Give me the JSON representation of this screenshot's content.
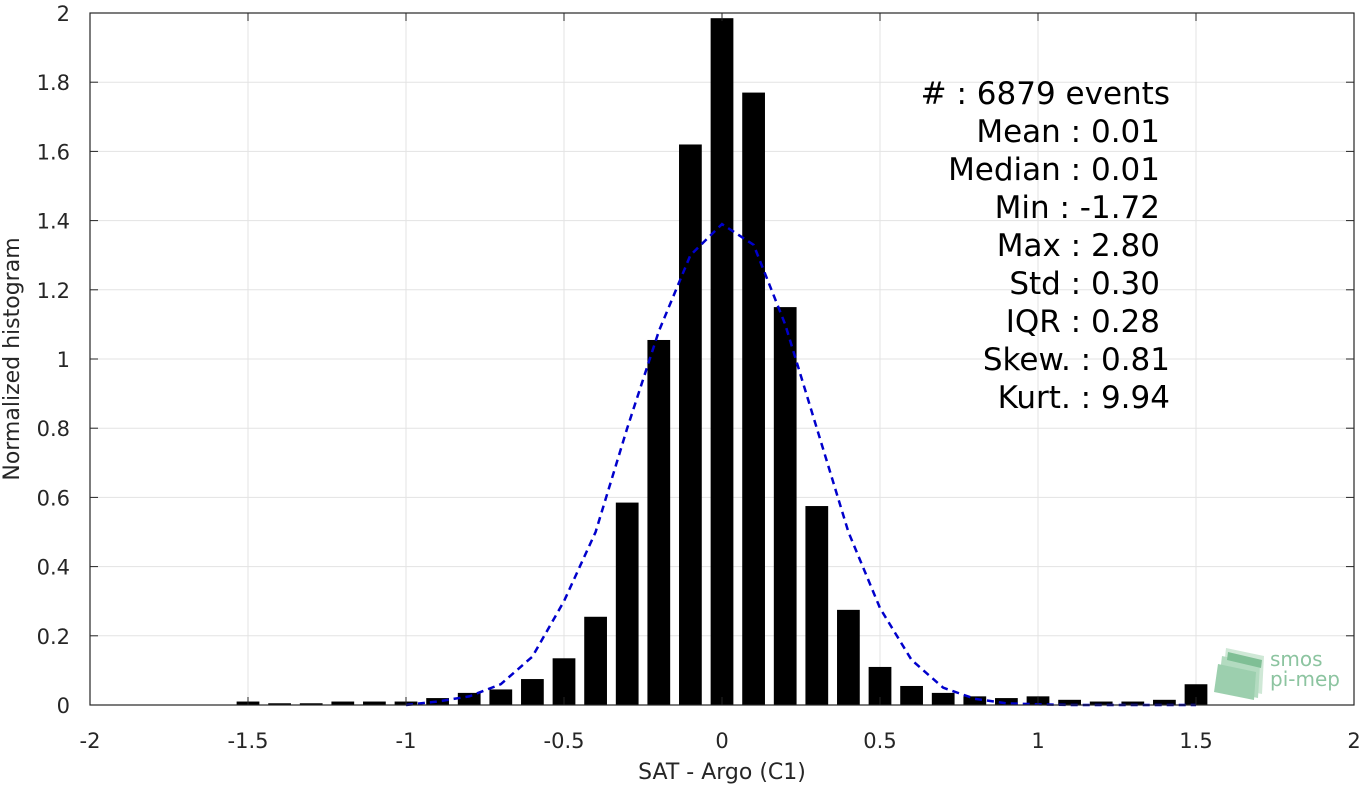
{
  "chart_data": {
    "type": "bar",
    "xlabel": "SAT - Argo (C1)",
    "ylabel": "Normalized histogram",
    "xlim": [
      -2,
      2
    ],
    "ylim": [
      0,
      2
    ],
    "xticks": [
      -2,
      -1.5,
      -1,
      -0.5,
      0,
      0.5,
      1,
      1.5,
      2
    ],
    "xtick_labels": [
      "-2",
      "-1.5",
      "-1",
      "-0.5",
      "0",
      "0.5",
      "1",
      "1.5",
      "2"
    ],
    "yticks": [
      0,
      0.2,
      0.4,
      0.6,
      0.8,
      1,
      1.2,
      1.4,
      1.6,
      1.8,
      2
    ],
    "ytick_labels": [
      "0",
      "0.2",
      "0.4",
      "0.6",
      "0.8",
      "1",
      "1.2",
      "1.4",
      "1.6",
      "1.8",
      "2"
    ],
    "grid": true,
    "bar_color": "#000000",
    "bin_width": 0.1,
    "series": [
      {
        "x": [
          -1.5,
          -1.4,
          -1.3,
          -1.2,
          -1.1,
          -1.0,
          -0.9,
          -0.8,
          -0.7,
          -0.6,
          -0.5,
          -0.4,
          -0.3,
          -0.2,
          -0.1,
          0.0,
          0.1,
          0.2,
          0.3,
          0.4,
          0.5,
          0.6,
          0.7,
          0.8,
          0.9,
          1.0,
          1.1,
          1.2,
          1.3,
          1.4,
          1.5
        ],
        "values": [
          0.01,
          0.005,
          0.005,
          0.01,
          0.01,
          0.01,
          0.02,
          0.035,
          0.045,
          0.075,
          0.135,
          0.255,
          0.585,
          1.055,
          1.62,
          1.985,
          1.77,
          1.15,
          0.575,
          0.275,
          0.11,
          0.055,
          0.035,
          0.025,
          0.02,
          0.025,
          0.015,
          0.01,
          0.01,
          0.015,
          0.06
        ]
      },
      {
        "style": "dashed",
        "color": "#0000cc",
        "x": [
          -1.0,
          -0.9,
          -0.8,
          -0.7,
          -0.6,
          -0.5,
          -0.4,
          -0.3,
          -0.2,
          -0.1,
          0.0,
          0.1,
          0.2,
          0.3,
          0.4,
          0.5,
          0.6,
          0.7,
          0.8,
          0.9,
          1.0,
          1.1,
          1.2,
          1.3,
          1.4,
          1.5
        ],
        "values": [
          0.0,
          0.01,
          0.025,
          0.06,
          0.14,
          0.3,
          0.5,
          0.8,
          1.08,
          1.3,
          1.39,
          1.33,
          1.1,
          0.8,
          0.5,
          0.28,
          0.13,
          0.05,
          0.018,
          0.005,
          0.002,
          0.0,
          0.0,
          0.0,
          0.0,
          0.0
        ]
      }
    ],
    "annotations": [
      {
        "label": "#  : 6879 events"
      },
      {
        "label": "Mean : 0.01"
      },
      {
        "label": "Median : 0.01"
      },
      {
        "label": "Min : -1.72"
      },
      {
        "label": "Max : 2.80"
      },
      {
        "label": "Std : 0.30"
      },
      {
        "label": "IQR : 0.28"
      },
      {
        "label": "Skew. : 0.81"
      },
      {
        "label": "Kurt. : 9.94"
      }
    ]
  },
  "logo": {
    "line1": "smos",
    "line2": "pi-mep"
  }
}
